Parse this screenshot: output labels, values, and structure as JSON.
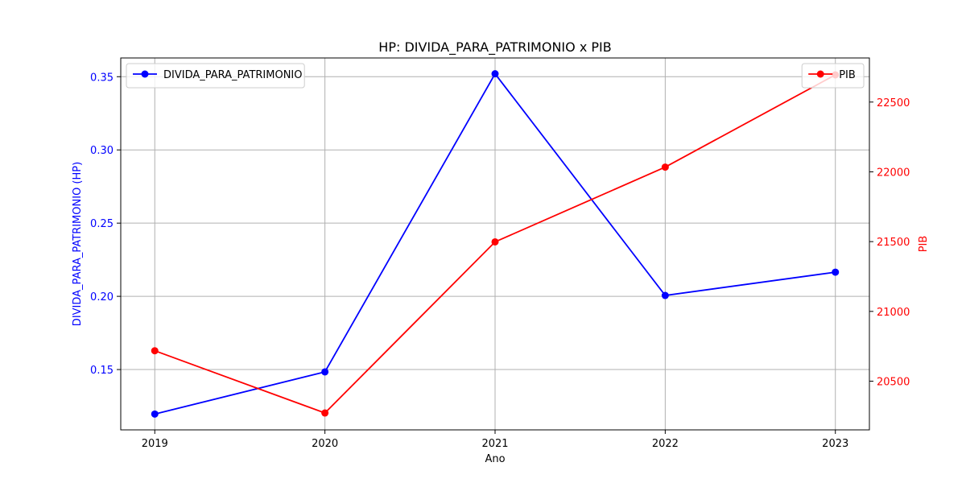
{
  "chart_data": {
    "type": "line",
    "title": "HP: DIVIDA_PARA_PATRIMONIO x PIB",
    "xlabel": "Ano",
    "ylabel_left": "DIVIDA_PARA_PATRIMONIO (HP)",
    "ylabel_right": "PIB",
    "x": [
      "2019",
      "2020",
      "2021",
      "2022",
      "2023"
    ],
    "xlim": [
      2018.8,
      2023.2
    ],
    "grid": true,
    "series": [
      {
        "name": "DIVIDA_PARA_PATRIMONIO",
        "axis": "left",
        "color": "#0000ff",
        "marker": "circle",
        "values": [
          0.1196,
          0.1484,
          0.352,
          0.2006,
          0.2165
        ]
      },
      {
        "name": "PIB",
        "axis": "right",
        "color": "#ff0000",
        "marker": "circle",
        "values": [
          20718,
          20272,
          21498,
          22034,
          22695
        ]
      }
    ],
    "y_left": {
      "lim": [
        0.1088,
        0.3628
      ],
      "ticks": [
        0.15,
        0.2,
        0.25,
        0.3,
        0.35
      ],
      "tick_labels": [
        "0.15",
        "0.20",
        "0.25",
        "0.30",
        "0.35"
      ],
      "color": "#0000ff"
    },
    "y_right": {
      "lim": [
        20151,
        22816
      ],
      "ticks": [
        20500,
        21000,
        21500,
        22000,
        22500
      ],
      "tick_labels": [
        "20500",
        "21000",
        "21500",
        "22000",
        "22500"
      ],
      "color": "#ff0000"
    },
    "legends": [
      {
        "placement": "upper-left",
        "entries": [
          "DIVIDA_PARA_PATRIMONIO"
        ]
      },
      {
        "placement": "upper-right",
        "entries": [
          "PIB"
        ]
      }
    ]
  }
}
